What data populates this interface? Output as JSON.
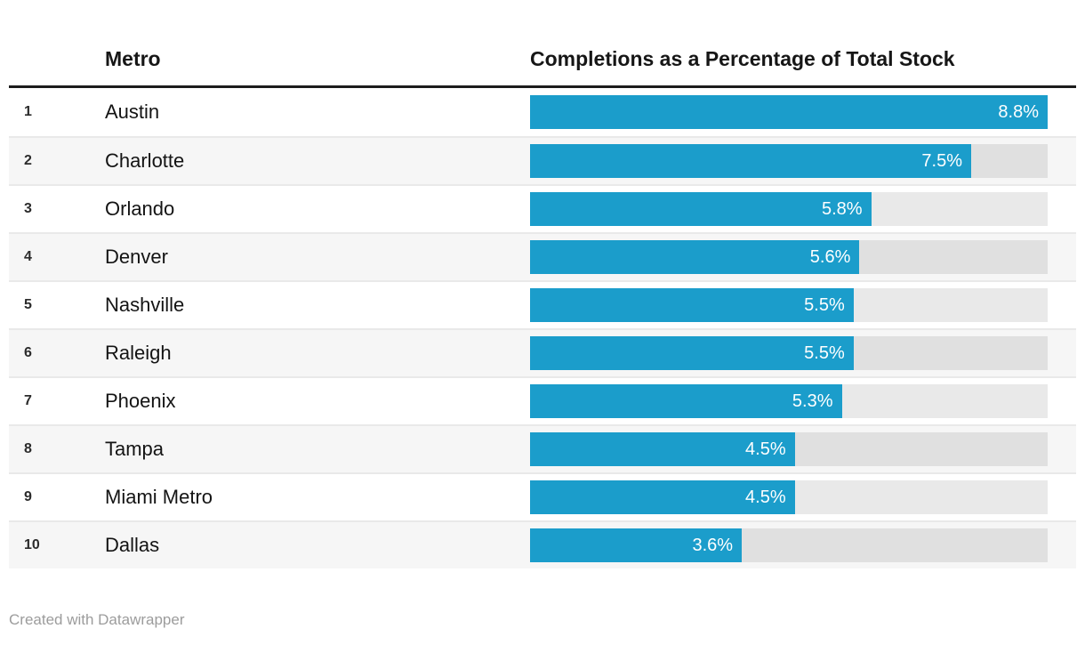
{
  "chart_data": {
    "type": "bar",
    "title": "",
    "columns": {
      "rank": "",
      "metro": "Metro",
      "value": "Completions as a Percentage of Total Stock"
    },
    "categories": [
      "Austin",
      "Charlotte",
      "Orlando",
      "Denver",
      "Nashville",
      "Raleigh",
      "Phoenix",
      "Tampa",
      "Miami Metro",
      "Dallas"
    ],
    "values": [
      8.8,
      7.5,
      5.8,
      5.6,
      5.5,
      5.5,
      5.3,
      4.5,
      4.5,
      3.6
    ],
    "rows": [
      {
        "rank": "1",
        "metro": "Austin",
        "value": 8.8,
        "label": "8.8%"
      },
      {
        "rank": "2",
        "metro": "Charlotte",
        "value": 7.5,
        "label": "7.5%"
      },
      {
        "rank": "3",
        "metro": "Orlando",
        "value": 5.8,
        "label": "5.8%"
      },
      {
        "rank": "4",
        "metro": "Denver",
        "value": 5.6,
        "label": "5.6%"
      },
      {
        "rank": "5",
        "metro": "Nashville",
        "value": 5.5,
        "label": "5.5%"
      },
      {
        "rank": "6",
        "metro": "Raleigh",
        "value": 5.5,
        "label": "5.5%"
      },
      {
        "rank": "7",
        "metro": "Phoenix",
        "value": 5.3,
        "label": "5.3%"
      },
      {
        "rank": "8",
        "metro": "Tampa",
        "value": 4.5,
        "label": "4.5%"
      },
      {
        "rank": "9",
        "metro": "Miami Metro",
        "value": 4.5,
        "label": "4.5%"
      },
      {
        "rank": "10",
        "metro": "Dallas",
        "value": 3.6,
        "label": "3.6%"
      }
    ],
    "xlim": [
      0,
      8.8
    ],
    "value_suffix": "%",
    "bar_color": "#1b9dcb",
    "legend_position": "none",
    "grid": false
  },
  "footer": {
    "credit": "Created with Datawrapper"
  }
}
